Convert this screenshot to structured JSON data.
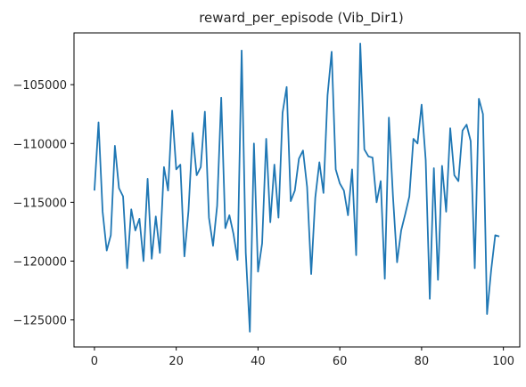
{
  "chart_data": {
    "type": "line",
    "title": "reward_per_episode (Vib_Dir1)",
    "xlabel": "",
    "ylabel": "",
    "xlim": [
      -5,
      104
    ],
    "ylim": [
      -127300,
      -100600
    ],
    "xticks": [
      0,
      20,
      40,
      60,
      80,
      100
    ],
    "yticks": [
      -125000,
      -120000,
      -115000,
      -110000,
      -105000
    ],
    "grid": false,
    "series": [
      {
        "color": "#1f77b4",
        "x": [
          0,
          1,
          2,
          3,
          4,
          5,
          6,
          7,
          8,
          9,
          10,
          11,
          12,
          13,
          14,
          15,
          16,
          17,
          18,
          19,
          20,
          21,
          22,
          23,
          24,
          25,
          26,
          27,
          28,
          29,
          30,
          31,
          32,
          33,
          34,
          35,
          36,
          37,
          38,
          39,
          40,
          41,
          42,
          43,
          44,
          45,
          46,
          47,
          48,
          49,
          50,
          51,
          52,
          53,
          54,
          55,
          56,
          57,
          58,
          59,
          60,
          61,
          62,
          63,
          64,
          65,
          66,
          67,
          68,
          69,
          70,
          71,
          72,
          73,
          74,
          75,
          76,
          77,
          78,
          79,
          80,
          81,
          82,
          83,
          84,
          85,
          86,
          87,
          88,
          89,
          90,
          91,
          92,
          93,
          94,
          95,
          96,
          97,
          98,
          99
        ],
        "values": [
          -114000,
          -108200,
          -115800,
          -119100,
          -117800,
          -110200,
          -113800,
          -114500,
          -120600,
          -115600,
          -117400,
          -116400,
          -120000,
          -113000,
          -119800,
          -116200,
          -119300,
          -112000,
          -114000,
          -107200,
          -112200,
          -111800,
          -119600,
          -115700,
          -109100,
          -112700,
          -112000,
          -107300,
          -116300,
          -118700,
          -115300,
          -106100,
          -117200,
          -116100,
          -117700,
          -119900,
          -102100,
          -119300,
          -126000,
          -110000,
          -120900,
          -118500,
          -109600,
          -116700,
          -111800,
          -116300,
          -107400,
          -105200,
          -114900,
          -114000,
          -111300,
          -110600,
          -113700,
          -121100,
          -114600,
          -111600,
          -114200,
          -105900,
          -102200,
          -112200,
          -113400,
          -114000,
          -116100,
          -112200,
          -119500,
          -101500,
          -110500,
          -111100,
          -111200,
          -115000,
          -113200,
          -121500,
          -107800,
          -114500,
          -120100,
          -117400,
          -116000,
          -114500,
          -109600,
          -110000,
          -106700,
          -111400,
          -123200,
          -112100,
          -121600,
          -111900,
          -115800,
          -108700,
          -112700,
          -113200,
          -108900,
          -108400,
          -109800,
          -120600,
          -106200,
          -107500,
          -124500,
          -120800,
          -117800,
          -117900
        ]
      }
    ]
  }
}
